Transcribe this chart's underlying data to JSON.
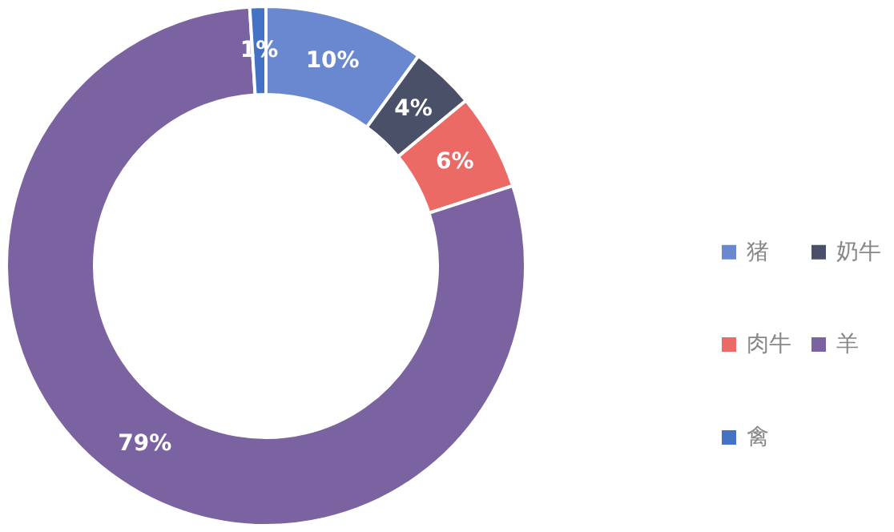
{
  "chart_data": {
    "type": "donut",
    "categories": [
      "猪",
      "奶牛",
      "肉牛",
      "羊",
      "禽"
    ],
    "values": [
      10,
      4,
      6,
      79,
      1
    ],
    "colors": [
      "#6a88d0",
      "#4a5068",
      "#ec6a65",
      "#7b62a1",
      "#4472c4"
    ],
    "value_labels": [
      "10%",
      "4%",
      "6%",
      "79%",
      "1%"
    ],
    "legend": "right"
  }
}
